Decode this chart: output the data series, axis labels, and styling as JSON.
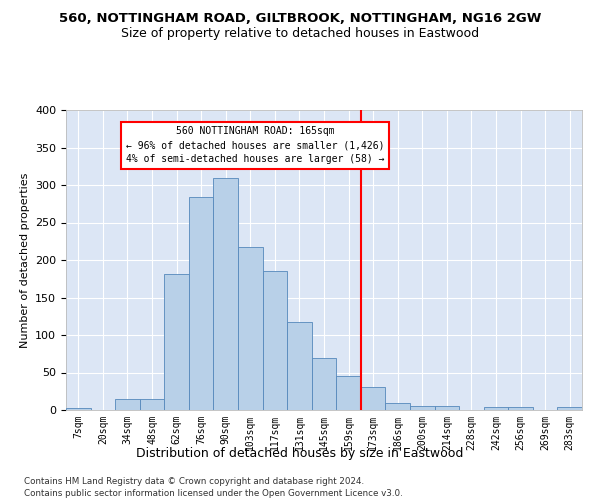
{
  "title": "560, NOTTINGHAM ROAD, GILTBROOK, NOTTINGHAM, NG16 2GW",
  "subtitle": "Size of property relative to detached houses in Eastwood",
  "xlabel": "Distribution of detached houses by size in Eastwood",
  "ylabel": "Number of detached properties",
  "categories": [
    "7sqm",
    "20sqm",
    "34sqm",
    "48sqm",
    "62sqm",
    "76sqm",
    "90sqm",
    "103sqm",
    "117sqm",
    "131sqm",
    "145sqm",
    "159sqm",
    "173sqm",
    "186sqm",
    "200sqm",
    "214sqm",
    "228sqm",
    "242sqm",
    "256sqm",
    "269sqm",
    "283sqm"
  ],
  "bar_heights": [
    3,
    0,
    15,
    15,
    181,
    284,
    309,
    217,
    185,
    117,
    69,
    46,
    31,
    9,
    6,
    5,
    0,
    4,
    4,
    0,
    4
  ],
  "bar_color": "#b8d0e8",
  "bar_edge_color": "#5588bb",
  "vline_pos": 11.5,
  "vline_color": "red",
  "annotation_title": "560 NOTTINGHAM ROAD: 165sqm",
  "annotation_line1": "← 96% of detached houses are smaller (1,426)",
  "annotation_line2": "4% of semi-detached houses are larger (58) →",
  "bg_color": "#dce6f5",
  "grid_color": "#ffffff",
  "footer1": "Contains HM Land Registry data © Crown copyright and database right 2024.",
  "footer2": "Contains public sector information licensed under the Open Government Licence v3.0.",
  "ylim": [
    0,
    400
  ],
  "yticks": [
    0,
    50,
    100,
    150,
    200,
    250,
    300,
    350,
    400
  ]
}
